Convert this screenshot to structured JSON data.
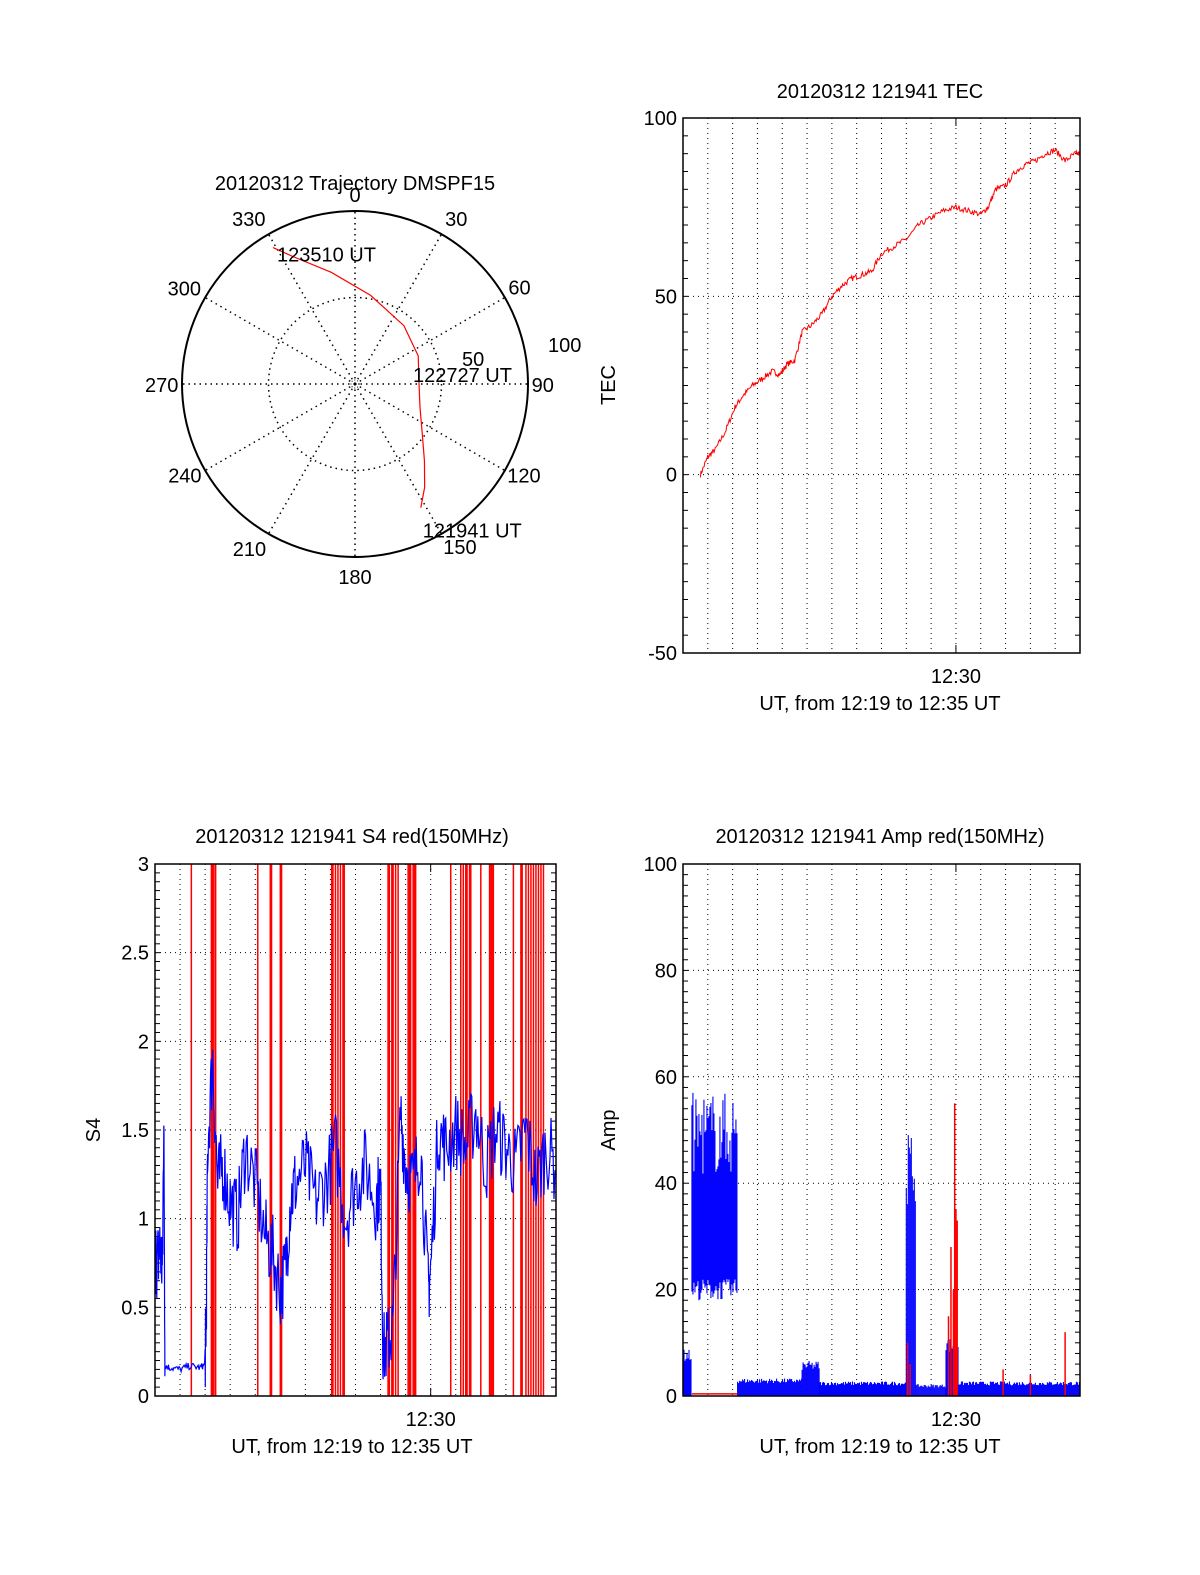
{
  "chart_data": [
    {
      "type": "polar",
      "title": "20120312 Trajectory DMSPF15",
      "angle_ticks": [
        "0",
        "30",
        "60",
        "90",
        "120",
        "150",
        "180",
        "210",
        "240",
        "270",
        "300",
        "330"
      ],
      "radial_ticks": [
        "50",
        "100"
      ],
      "rlim": [
        0,
        100
      ],
      "grid": true,
      "series": [
        {
          "name": "trajectory",
          "color": "#ff0000",
          "points": [
            {
              "az": 152,
              "r": 81
            },
            {
              "az": 146,
              "r": 72
            },
            {
              "az": 138,
              "r": 60
            },
            {
              "az": 126,
              "r": 48
            },
            {
              "az": 110,
              "r": 40
            },
            {
              "az": 90,
              "r": 37
            },
            {
              "az": 66,
              "r": 40
            },
            {
              "az": 40,
              "r": 44
            },
            {
              "az": 10,
              "r": 52
            },
            {
              "az": -12,
              "r": 66
            },
            {
              "az": -26,
              "r": 82
            },
            {
              "az": -31,
              "r": 92
            }
          ]
        }
      ],
      "annotations": [
        {
          "text": "123510 UT",
          "az": -31,
          "r": 92
        },
        {
          "text": "122727 UT",
          "az": 90,
          "r": 37
        },
        {
          "text": "121941 UT",
          "az": 152,
          "r": 81
        }
      ]
    },
    {
      "type": "line",
      "title": "20120312 121941 TEC",
      "xlabel": "UT, from 12:19 to 12:35 UT",
      "ylabel": "TEC",
      "xlim": [
        0,
        16
      ],
      "ylim": [
        -50,
        100
      ],
      "x_unit": "minutes after 12:19 UT",
      "xticks": [
        {
          "value": 11,
          "label": "12:30"
        }
      ],
      "yticks": [
        "-50",
        "0",
        "50",
        "100"
      ],
      "grid": true,
      "series": [
        {
          "name": "TEC",
          "color": "#ff0000",
          "x": [
            0.7,
            1.0,
            1.3,
            1.7,
            2.1,
            2.4,
            2.8,
            3.2,
            3.6,
            3.9,
            4.2,
            4.5,
            4.8,
            5.2,
            5.6,
            6.0,
            6.4,
            6.8,
            7.2,
            7.6,
            8.0,
            8.5,
            9.0,
            9.5,
            10.0,
            10.5,
            11.0,
            11.5,
            12.0,
            12.3,
            12.6,
            13.0,
            13.4,
            13.8,
            14.2,
            14.6,
            15.0,
            15.4,
            15.8,
            16.0
          ],
          "values": [
            0,
            5,
            7,
            12,
            19,
            22,
            25,
            27,
            29,
            28,
            31,
            32,
            40,
            42,
            45,
            50,
            53,
            55,
            56,
            57,
            62,
            64,
            66,
            70,
            72,
            74,
            75,
            74,
            73,
            75,
            80,
            81,
            85,
            87,
            88,
            90,
            91,
            88,
            90,
            90
          ]
        }
      ]
    },
    {
      "type": "line",
      "title": "20120312 121941 S4 red(150MHz)",
      "xlabel": "UT, from 12:19 to 12:35 UT",
      "ylabel": "S4",
      "xlim": [
        0,
        16
      ],
      "ylim": [
        0,
        3
      ],
      "x_unit": "minutes after 12:19 UT",
      "xticks": [
        {
          "value": 11,
          "label": "12:30"
        }
      ],
      "yticks": [
        "0",
        "0.5",
        "1",
        "1.5",
        "2",
        "2.5",
        "3"
      ],
      "grid": true,
      "series": [
        {
          "name": "blue",
          "color": "#0000ff",
          "x": [
            0.0,
            0.1,
            0.2,
            0.3,
            0.35,
            0.4,
            0.6,
            1.0,
            1.4,
            1.8,
            2.0,
            2.05,
            2.1,
            2.3,
            2.5,
            2.7,
            3.0,
            3.3,
            3.6,
            4.0,
            4.4,
            4.7,
            5.0,
            5.2,
            5.4,
            5.6,
            6.0,
            6.4,
            6.8,
            7.2,
            7.6,
            8.0,
            8.4,
            8.8,
            9.0,
            9.1,
            9.3,
            9.5,
            9.8,
            10.0,
            10.3,
            10.6,
            10.9,
            11.0,
            11.3,
            11.6,
            12.0,
            12.4,
            12.8,
            13.2,
            13.6,
            14.0,
            14.4,
            14.8,
            15.2,
            15.6,
            16.0
          ],
          "values": [
            0.8,
            0.75,
            0.85,
            0.7,
            1.6,
            0.17,
            0.16,
            0.15,
            0.17,
            0.16,
            0.18,
            0.5,
            1.4,
            1.9,
            1.2,
            1.3,
            1.1,
            1.0,
            1.4,
            1.2,
            0.9,
            0.8,
            0.6,
            0.7,
            1.1,
            1.2,
            1.3,
            1.1,
            1.2,
            1.4,
            1.0,
            1.2,
            1.3,
            1.1,
            1.2,
            0.25,
            0.3,
            0.4,
            1.6,
            1.3,
            1.2,
            1.4,
            0.6,
            0.7,
            1.5,
            1.4,
            1.5,
            1.4,
            1.6,
            1.3,
            1.5,
            1.4,
            1.3,
            1.5,
            1.2,
            1.4,
            1.3
          ]
        },
        {
          "name": "red",
          "color": "#ff0000",
          "spikes_x": [
            1.45,
            2.25,
            2.3,
            2.35,
            2.42,
            4.1,
            4.6,
            4.65,
            5.0,
            5.05,
            7.05,
            7.1,
            7.2,
            7.3,
            7.4,
            7.5,
            7.55,
            9.3,
            9.35,
            9.45,
            9.5,
            9.6,
            9.7,
            10.1,
            10.15,
            10.2,
            10.3,
            10.35,
            10.4,
            11.8,
            12.2,
            12.3,
            12.4,
            12.45,
            12.55,
            12.6,
            13.0,
            13.35,
            13.4,
            13.45,
            13.5,
            14.3,
            14.6,
            14.65,
            14.8,
            14.9,
            15.0,
            15.1,
            15.2,
            15.3,
            15.4,
            15.5
          ],
          "spikes_value": 3
        }
      ]
    },
    {
      "type": "line",
      "title": "20120312 121941 Amp red(150MHz)",
      "xlabel": "UT, from 12:19 to 12:35 UT",
      "ylabel": "Amp",
      "xlim": [
        0,
        16
      ],
      "ylim": [
        0,
        100
      ],
      "x_unit": "minutes after 12:19 UT",
      "xticks": [
        {
          "value": 11,
          "label": "12:30"
        }
      ],
      "yticks": [
        "0",
        "20",
        "40",
        "60",
        "80",
        "100"
      ],
      "grid": true,
      "series": [
        {
          "name": "blue",
          "color": "#0000ff",
          "bands": [
            {
              "x0": 0.0,
              "x1": 0.35,
              "low": 0,
              "high": 8
            },
            {
              "x0": 0.36,
              "x1": 2.2,
              "low": 20,
              "high": 52
            },
            {
              "x0": 2.2,
              "x1": 4.8,
              "low": 0,
              "high": 3
            },
            {
              "x0": 4.8,
              "x1": 5.5,
              "low": 0,
              "high": 6
            },
            {
              "x0": 5.5,
              "x1": 9.0,
              "low": 0,
              "high": 2.5
            },
            {
              "x0": 9.0,
              "x1": 9.4,
              "low": 0,
              "high": 45
            },
            {
              "x0": 9.4,
              "x1": 10.6,
              "low": 0,
              "high": 2
            },
            {
              "x0": 10.6,
              "x1": 11.1,
              "low": 0,
              "high": 10
            },
            {
              "x0": 11.1,
              "x1": 16.0,
              "low": 0,
              "high": 2.5
            }
          ]
        },
        {
          "name": "red",
          "color": "#ff0000",
          "spikes": [
            {
              "x": 9.05,
              "value": 10
            },
            {
              "x": 9.15,
              "value": 6
            },
            {
              "x": 10.7,
              "value": 15
            },
            {
              "x": 10.8,
              "value": 28
            },
            {
              "x": 10.9,
              "value": 20
            },
            {
              "x": 10.95,
              "value": 55
            },
            {
              "x": 11.0,
              "value": 35
            },
            {
              "x": 11.05,
              "value": 33
            },
            {
              "x": 12.9,
              "value": 5
            },
            {
              "x": 14.0,
              "value": 4
            },
            {
              "x": 15.4,
              "value": 12
            }
          ]
        }
      ]
    }
  ]
}
